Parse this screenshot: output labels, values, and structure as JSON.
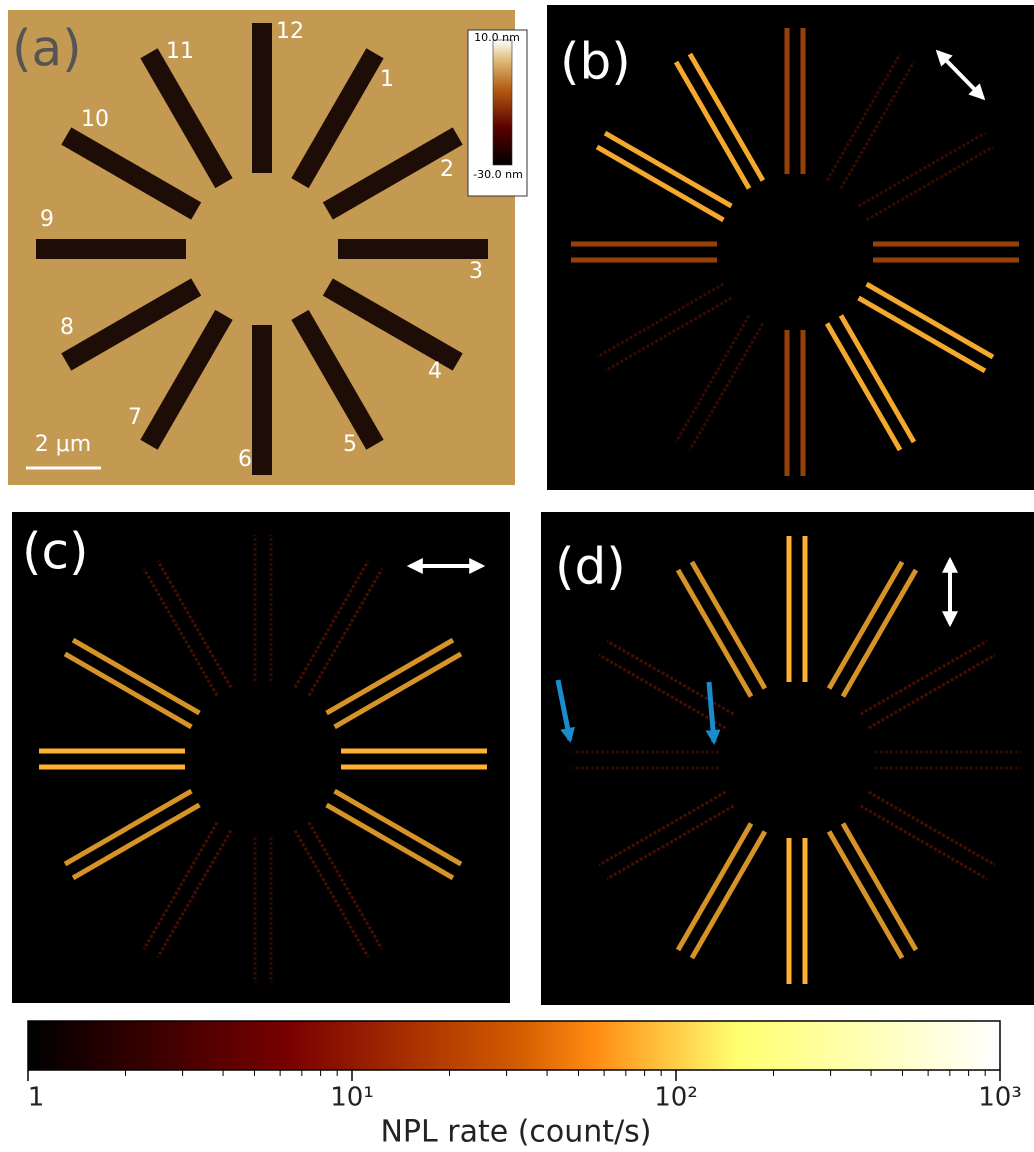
{
  "panels": [
    {
      "label": "(a)",
      "slot_labels": [
        "1",
        "2",
        "3",
        "4",
        "5",
        "6",
        "7",
        "8",
        "9",
        "10",
        "11",
        "12"
      ],
      "scale_bar": "2 μm",
      "height_scale": {
        "max": "10.0 nm",
        "min": "-30.0 nm"
      }
    },
    {
      "label": "(b)"
    },
    {
      "label": "(c)"
    },
    {
      "label": "(d)"
    }
  ],
  "colorbar": {
    "log": true,
    "xlim": [
      1,
      1000
    ],
    "ticks": [
      1,
      {
        "value": 10,
        "label": "10¹"
      },
      {
        "value": 100,
        "label": "10²"
      },
      {
        "value": 1000,
        "label": "10³"
      }
    ],
    "label": "NPL rate (count/s)"
  }
}
